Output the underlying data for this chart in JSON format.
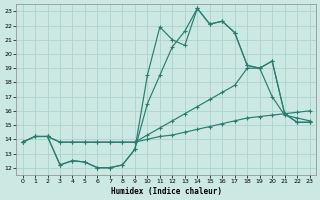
{
  "xlabel": "Humidex (Indice chaleur)",
  "xlim": [
    -0.5,
    23.5
  ],
  "ylim": [
    11.5,
    23.5
  ],
  "xticks": [
    0,
    1,
    2,
    3,
    4,
    5,
    6,
    7,
    8,
    9,
    10,
    11,
    12,
    13,
    14,
    15,
    16,
    17,
    18,
    19,
    20,
    21,
    22,
    23
  ],
  "yticks": [
    12,
    13,
    14,
    15,
    16,
    17,
    18,
    19,
    20,
    21,
    22,
    23
  ],
  "line_color": "#2a7d6e",
  "bg_color": "#cce8e2",
  "grid_color": "#a8cfc8",
  "lines": [
    {
      "x": [
        0,
        1,
        2,
        3,
        4,
        5,
        6,
        7,
        8,
        9,
        10,
        11,
        12,
        13,
        14,
        15,
        16,
        17,
        18,
        19,
        20,
        21,
        22,
        23
      ],
      "y": [
        13.8,
        14.2,
        14.2,
        13.8,
        13.8,
        13.8,
        13.8,
        13.8,
        13.8,
        13.8,
        14.0,
        14.2,
        14.3,
        14.5,
        14.7,
        14.9,
        15.1,
        15.3,
        15.5,
        15.6,
        15.7,
        15.8,
        15.9,
        16.0
      ]
    },
    {
      "x": [
        0,
        1,
        2,
        3,
        4,
        5,
        6,
        7,
        8,
        9,
        10,
        11,
        12,
        13,
        14,
        15,
        16,
        17,
        18,
        19,
        20,
        21,
        22,
        23
      ],
      "y": [
        13.8,
        14.2,
        14.2,
        13.8,
        13.8,
        13.8,
        13.8,
        13.8,
        13.8,
        13.8,
        14.3,
        14.8,
        15.3,
        15.8,
        16.3,
        16.8,
        17.3,
        17.8,
        19.0,
        19.0,
        17.0,
        15.7,
        15.5,
        15.3
      ]
    },
    {
      "x": [
        0,
        1,
        2,
        3,
        4,
        5,
        6,
        7,
        8,
        9,
        10,
        11,
        12,
        13,
        14,
        15,
        16,
        17,
        18,
        19,
        20,
        21,
        22,
        23
      ],
      "y": [
        13.8,
        14.2,
        14.2,
        12.2,
        12.5,
        12.4,
        12.0,
        12.0,
        12.2,
        13.3,
        18.5,
        21.9,
        21.0,
        20.6,
        23.2,
        22.1,
        22.3,
        21.5,
        19.2,
        19.0,
        19.5,
        15.8,
        15.2,
        15.2
      ]
    },
    {
      "x": [
        2,
        3,
        4,
        5,
        6,
        7,
        8,
        9,
        10,
        11,
        12,
        13,
        14,
        15,
        16,
        17,
        18,
        19,
        20,
        21,
        22,
        23
      ],
      "y": [
        14.2,
        12.2,
        12.5,
        12.4,
        12.0,
        12.0,
        12.2,
        13.3,
        16.5,
        18.5,
        20.5,
        21.6,
        23.2,
        22.1,
        22.3,
        21.5,
        19.2,
        19.0,
        19.5,
        15.8,
        15.2,
        15.2
      ]
    }
  ]
}
